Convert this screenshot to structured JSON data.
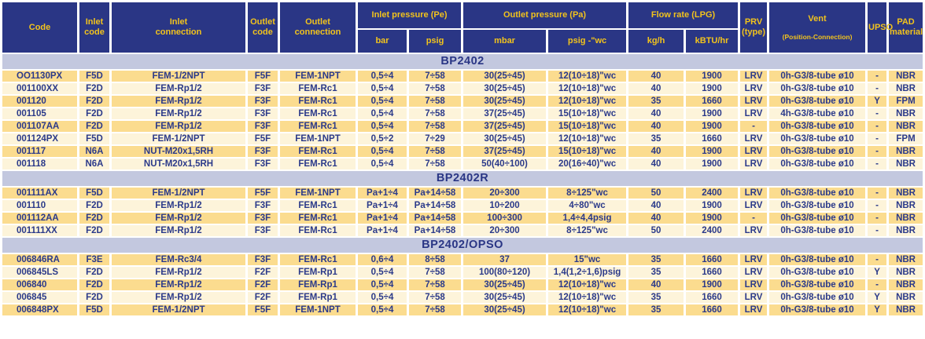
{
  "colors": {
    "header_bg": "#2a3685",
    "header_text": "#f2c31c",
    "band_bg": "#c3c8df",
    "band_text": "#2a3685",
    "row_odd_bg": "#fbdc8f",
    "row_even_bg": "#fdf4da",
    "cell_text": "#2b3a8a"
  },
  "header": {
    "code": "Code",
    "inlet_code": "Inlet\ncode",
    "inlet_connection": "Inlet\nconnection",
    "outlet_code": "Outlet\ncode",
    "outlet_connection": "Outlet\nconnection",
    "inlet_pressure_group": "Inlet pressure (Pe)",
    "bar": "bar",
    "psig": "psig",
    "outlet_pressure_group": "Outlet pressure (Pa)",
    "mbar": "mbar",
    "psig_wc": "psig -\"wc",
    "flow_rate_group": "Flow rate (LPG)",
    "kg_h": "kg/h",
    "kbtu_hr": "kBTU/hr",
    "prv": "PRV\n(type)",
    "vent": {
      "line1": "Vent",
      "line2": "(Position-Connection)"
    },
    "upso": "UPSO",
    "pad": "PAD\nmaterial"
  },
  "columns": [
    {
      "key": "code"
    },
    {
      "key": "inlet-code"
    },
    {
      "key": "inlet-connection"
    },
    {
      "key": "outlet-code"
    },
    {
      "key": "outlet-connection"
    },
    {
      "key": "bar"
    },
    {
      "key": "psig"
    },
    {
      "key": "mbar"
    },
    {
      "key": "psig-wc"
    },
    {
      "key": "kg-h"
    },
    {
      "key": "kbtu-hr"
    },
    {
      "key": "prv"
    },
    {
      "key": "vent"
    },
    {
      "key": "upso"
    },
    {
      "key": "pad"
    }
  ],
  "sections": [
    {
      "name": "BP2402",
      "rows": [
        [
          "OO1130PX",
          "F5D",
          "FEM-1/2NPT",
          "F5F",
          "FEM-1NPT",
          "0,5÷4",
          "7÷58",
          "30(25÷45)",
          "12(10÷18)\"wc",
          "40",
          "1900",
          "LRV",
          "0h-G3/8-tube ø10",
          "-",
          "NBR"
        ],
        [
          "001100XX",
          "F2D",
          "FEM-Rp1/2",
          "F3F",
          "FEM-Rc1",
          "0,5÷4",
          "7÷58",
          "30(25÷45)",
          "12(10÷18)\"wc",
          "40",
          "1900",
          "LRV",
          "0h-G3/8-tube ø10",
          "-",
          "NBR"
        ],
        [
          "001120",
          "F2D",
          "FEM-Rp1/2",
          "F3F",
          "FEM-Rc1",
          "0,5÷4",
          "7÷58",
          "30(25÷45)",
          "12(10÷18)\"wc",
          "35",
          "1660",
          "LRV",
          "0h-G3/8-tube ø10",
          "Y",
          "FPM"
        ],
        [
          "001105",
          "F2D",
          "FEM-Rp1/2",
          "F3F",
          "FEM-Rc1",
          "0,5÷4",
          "7÷58",
          "37(25÷45)",
          "15(10÷18)\"wc",
          "40",
          "1900",
          "LRV",
          "4h-G3/8-tube ø10",
          "-",
          "NBR"
        ],
        [
          "001107AA",
          "F2D",
          "FEM-Rp1/2",
          "F3F",
          "FEM-Rc1",
          "0,5÷4",
          "7÷58",
          "37(25÷45)",
          "15(10÷18)\"wc",
          "40",
          "1900",
          "-",
          "0h-G3/8-tube ø10",
          "-",
          "NBR"
        ],
        [
          "001124PX",
          "F5D",
          "FEM-1/2NPT",
          "F5F",
          "FEM-1NPT",
          "0,5÷2",
          "7÷29",
          "30(25÷45)",
          "12(10÷18)\"wc",
          "35",
          "1660",
          "LRV",
          "0h-G3/8-tube ø10",
          "-",
          "FPM"
        ],
        [
          "001117",
          "N6A",
          "NUT-M20x1,5RH",
          "F3F",
          "FEM-Rc1",
          "0,5÷4",
          "7÷58",
          "37(25÷45)",
          "15(10÷18)\"wc",
          "40",
          "1900",
          "LRV",
          "0h-G3/8-tube ø10",
          "-",
          "NBR"
        ],
        [
          "001118",
          "N6A",
          "NUT-M20x1,5RH",
          "F3F",
          "FEM-Rc1",
          "0,5÷4",
          "7÷58",
          "50(40÷100)",
          "20(16÷40)\"wc",
          "40",
          "1900",
          "LRV",
          "0h-G3/8-tube ø10",
          "-",
          "NBR"
        ]
      ]
    },
    {
      "name": "BP2402R",
      "rows": [
        [
          "001111AX",
          "F5D",
          "FEM-1/2NPT",
          "F5F",
          "FEM-1NPT",
          "Pa+1÷4",
          "Pa+14÷58",
          "20÷300",
          "8÷125\"wc",
          "50",
          "2400",
          "LRV",
          "0h-G3/8-tube ø10",
          "-",
          "NBR"
        ],
        [
          "001110",
          "F2D",
          "FEM-Rp1/2",
          "F3F",
          "FEM-Rc1",
          "Pa+1÷4",
          "Pa+14÷58",
          "10÷200",
          "4÷80\"wc",
          "40",
          "1900",
          "LRV",
          "0h-G3/8-tube ø10",
          "-",
          "NBR"
        ],
        [
          "001112AA",
          "F2D",
          "FEM-Rp1/2",
          "F3F",
          "FEM-Rc1",
          "Pa+1÷4",
          "Pa+14÷58",
          "100÷300",
          "1,4÷4,4psig",
          "40",
          "1900",
          "-",
          "0h-G3/8-tube ø10",
          "-",
          "NBR"
        ],
        [
          "001111XX",
          "F2D",
          "FEM-Rp1/2",
          "F3F",
          "FEM-Rc1",
          "Pa+1÷4",
          "Pa+14÷58",
          "20÷300",
          "8÷125\"wc",
          "50",
          "2400",
          "LRV",
          "0h-G3/8-tube ø10",
          "-",
          "NBR"
        ]
      ]
    },
    {
      "name": "BP2402/OPSO",
      "rows": [
        [
          "006846RA",
          "F3E",
          "FEM-Rc3/4",
          "F3F",
          "FEM-Rc1",
          "0,6÷4",
          "8÷58",
          "37",
          "15\"wc",
          "35",
          "1660",
          "LRV",
          "0h-G3/8-tube ø10",
          "-",
          "NBR"
        ],
        [
          "006845LS",
          "F2D",
          "FEM-Rp1/2",
          "F2F",
          "FEM-Rp1",
          "0,5÷4",
          "7÷58",
          "100(80÷120)",
          "1,4(1,2÷1,6)psig",
          "35",
          "1660",
          "LRV",
          "0h-G3/8-tube ø10",
          "Y",
          "NBR"
        ],
        [
          "006840",
          "F2D",
          "FEM-Rp1/2",
          "F2F",
          "FEM-Rp1",
          "0,5÷4",
          "7÷58",
          "30(25÷45)",
          "12(10÷18)\"wc",
          "40",
          "1900",
          "LRV",
          "0h-G3/8-tube ø10",
          "-",
          "NBR"
        ],
        [
          "006845",
          "F2D",
          "FEM-Rp1/2",
          "F2F",
          "FEM-Rp1",
          "0,5÷4",
          "7÷58",
          "30(25÷45)",
          "12(10÷18)\"wc",
          "35",
          "1660",
          "LRV",
          "0h-G3/8-tube ø10",
          "Y",
          "NBR"
        ],
        [
          "006848PX",
          "F5D",
          "FEM-1/2NPT",
          "F5F",
          "FEM-1NPT",
          "0,5÷4",
          "7÷58",
          "30(25÷45)",
          "12(10÷18)\"wc",
          "35",
          "1660",
          "LRV",
          "0h-G3/8-tube ø10",
          "Y",
          "NBR"
        ]
      ]
    }
  ]
}
